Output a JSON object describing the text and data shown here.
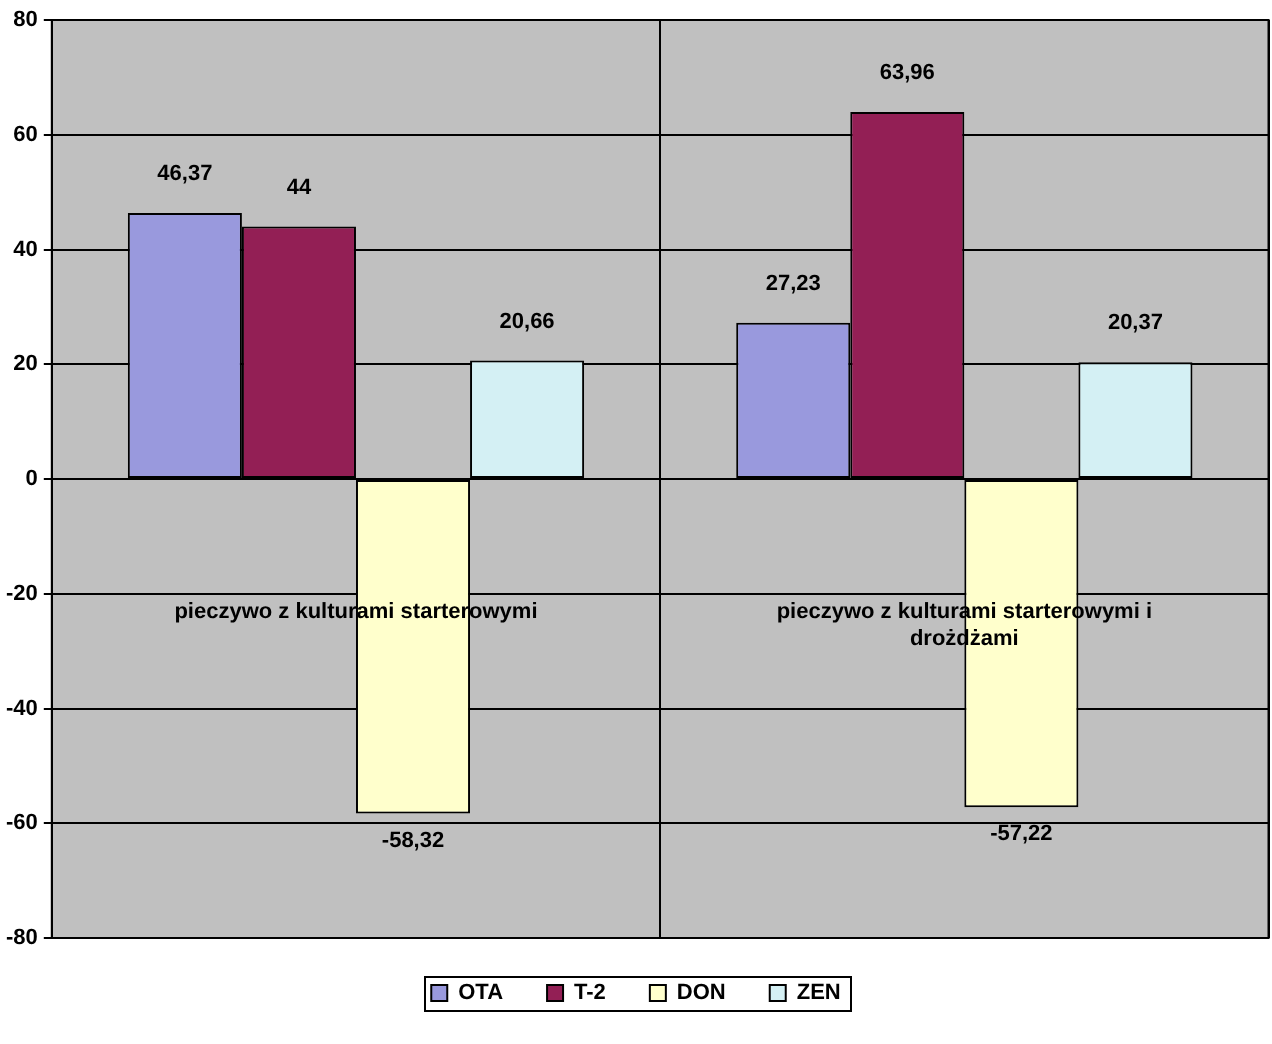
{
  "chart_data": {
    "type": "bar",
    "categories": [
      "pieczywo z kulturami starterowymi",
      "pieczywo z kulturami starterowymi i drożdżami"
    ],
    "series": [
      {
        "name": "OTA",
        "color": "#9999dd",
        "values": [
          46.37,
          27.23
        ],
        "value_labels": [
          "46,37",
          "27,23"
        ]
      },
      {
        "name": "T-2",
        "color": "#931f55",
        "values": [
          44,
          63.96
        ],
        "value_labels": [
          "44",
          "63,96"
        ]
      },
      {
        "name": "DON",
        "color": "#ffffcc",
        "values": [
          -58.32,
          -57.22
        ],
        "value_labels": [
          "-58,32",
          "-57,22"
        ]
      },
      {
        "name": "ZEN",
        "color": "#d4f0f4",
        "values": [
          20.66,
          20.37
        ],
        "value_labels": [
          "20,66",
          "20,37"
        ]
      }
    ],
    "ylim": [
      -80,
      80
    ],
    "yticks": [
      -80,
      -60,
      -40,
      -20,
      0,
      20,
      40,
      60,
      80
    ],
    "grid": true,
    "legend": "bottom"
  }
}
